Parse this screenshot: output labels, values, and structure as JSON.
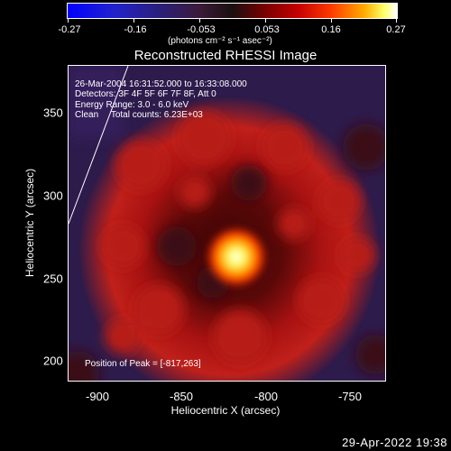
{
  "colorbar": {
    "ticks": [
      "-0.27",
      "-0.16",
      "-0.053",
      "0.053",
      "0.16",
      "0.27"
    ],
    "units": "(photons cm⁻² s⁻¹ asec⁻²)"
  },
  "title": "Reconstructed RHESSI Image",
  "info": {
    "time": "26-Mar-2004 16:31:52.000 to 16:33:08.000",
    "detectors": "Detectors: 3F 4F 5F 6F 7F 8F, Att 0",
    "energy": "Energy Range: 3.0 - 6.0 keV",
    "clean": "Clean     Total counts: 6.23E+03"
  },
  "peak": "Position of Peak = [-817,263]",
  "axes": {
    "x_ticks": [
      "-900",
      "-850",
      "-800",
      "-750"
    ],
    "y_ticks": [
      "350",
      "300",
      "250",
      "200"
    ],
    "xlabel": "Heliocentric X (arcsec)",
    "ylabel": "Heliocentric Y (arcsec)"
  },
  "timestamp": "29-Apr-2022 19:38"
}
